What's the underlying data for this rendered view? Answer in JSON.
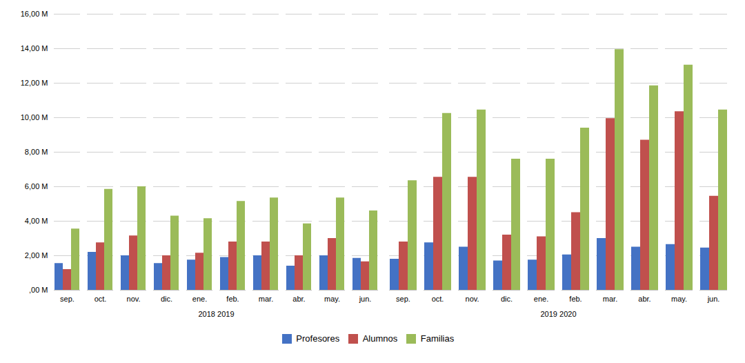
{
  "chart_data": [
    {
      "type": "bar",
      "xlabel": "2018 2019",
      "categories": [
        "sep.",
        "oct.",
        "nov.",
        "dic.",
        "ene.",
        "feb.",
        "mar.",
        "abr.",
        "may.",
        "jun."
      ],
      "series": [
        {
          "name": "Profesores",
          "color": "#4472C4",
          "values": [
            1550000,
            2200000,
            2000000,
            1550000,
            1750000,
            1900000,
            2000000,
            1400000,
            2000000,
            1850000
          ]
        },
        {
          "name": "Alumnos",
          "color": "#C0504D",
          "values": [
            1200000,
            2750000,
            3150000,
            2000000,
            2150000,
            2800000,
            2800000,
            2000000,
            3000000,
            1650000
          ]
        },
        {
          "name": "Familias",
          "color": "#9BBB59",
          "values": [
            3550000,
            5850000,
            6000000,
            4300000,
            4150000,
            5150000,
            5350000,
            3850000,
            5350000,
            4600000
          ]
        }
      ],
      "ylim": [
        0,
        16000000
      ],
      "yticks": [
        {
          "value": 0,
          "label": ",00 M"
        },
        {
          "value": 2000000,
          "label": "2,00 M"
        },
        {
          "value": 4000000,
          "label": "4,00 M"
        },
        {
          "value": 6000000,
          "label": "6,00 M"
        },
        {
          "value": 8000000,
          "label": "8,00 M"
        },
        {
          "value": 10000000,
          "label": "10,00 M"
        },
        {
          "value": 12000000,
          "label": "12,00 M"
        },
        {
          "value": 14000000,
          "label": "14,00 M"
        },
        {
          "value": 16000000,
          "label": "16,00 M"
        }
      ],
      "grid": true,
      "legend": "bottom"
    },
    {
      "type": "bar",
      "xlabel": "2019 2020",
      "categories": [
        "sep.",
        "oct.",
        "nov.",
        "dic.",
        "ene.",
        "feb.",
        "mar.",
        "abr.",
        "may.",
        "jun."
      ],
      "series": [
        {
          "name": "Profesores",
          "color": "#4472C4",
          "values": [
            1800000,
            2750000,
            2500000,
            1700000,
            1750000,
            2050000,
            3000000,
            2500000,
            2650000,
            2450000
          ]
        },
        {
          "name": "Alumnos",
          "color": "#C0504D",
          "values": [
            2800000,
            6550000,
            6550000,
            3200000,
            3100000,
            4500000,
            9950000,
            8700000,
            10350000,
            5450000
          ]
        },
        {
          "name": "Familias",
          "color": "#9BBB59",
          "values": [
            6350000,
            10250000,
            10450000,
            7600000,
            7600000,
            9400000,
            13950000,
            11850000,
            13050000,
            10450000
          ]
        }
      ],
      "ylim": [
        0,
        16000000
      ],
      "yticks": [
        0,
        2000000,
        4000000,
        6000000,
        8000000,
        10000000,
        12000000,
        14000000,
        16000000
      ],
      "grid": true,
      "legend": "bottom",
      "tick_labels": "x"
    }
  ]
}
